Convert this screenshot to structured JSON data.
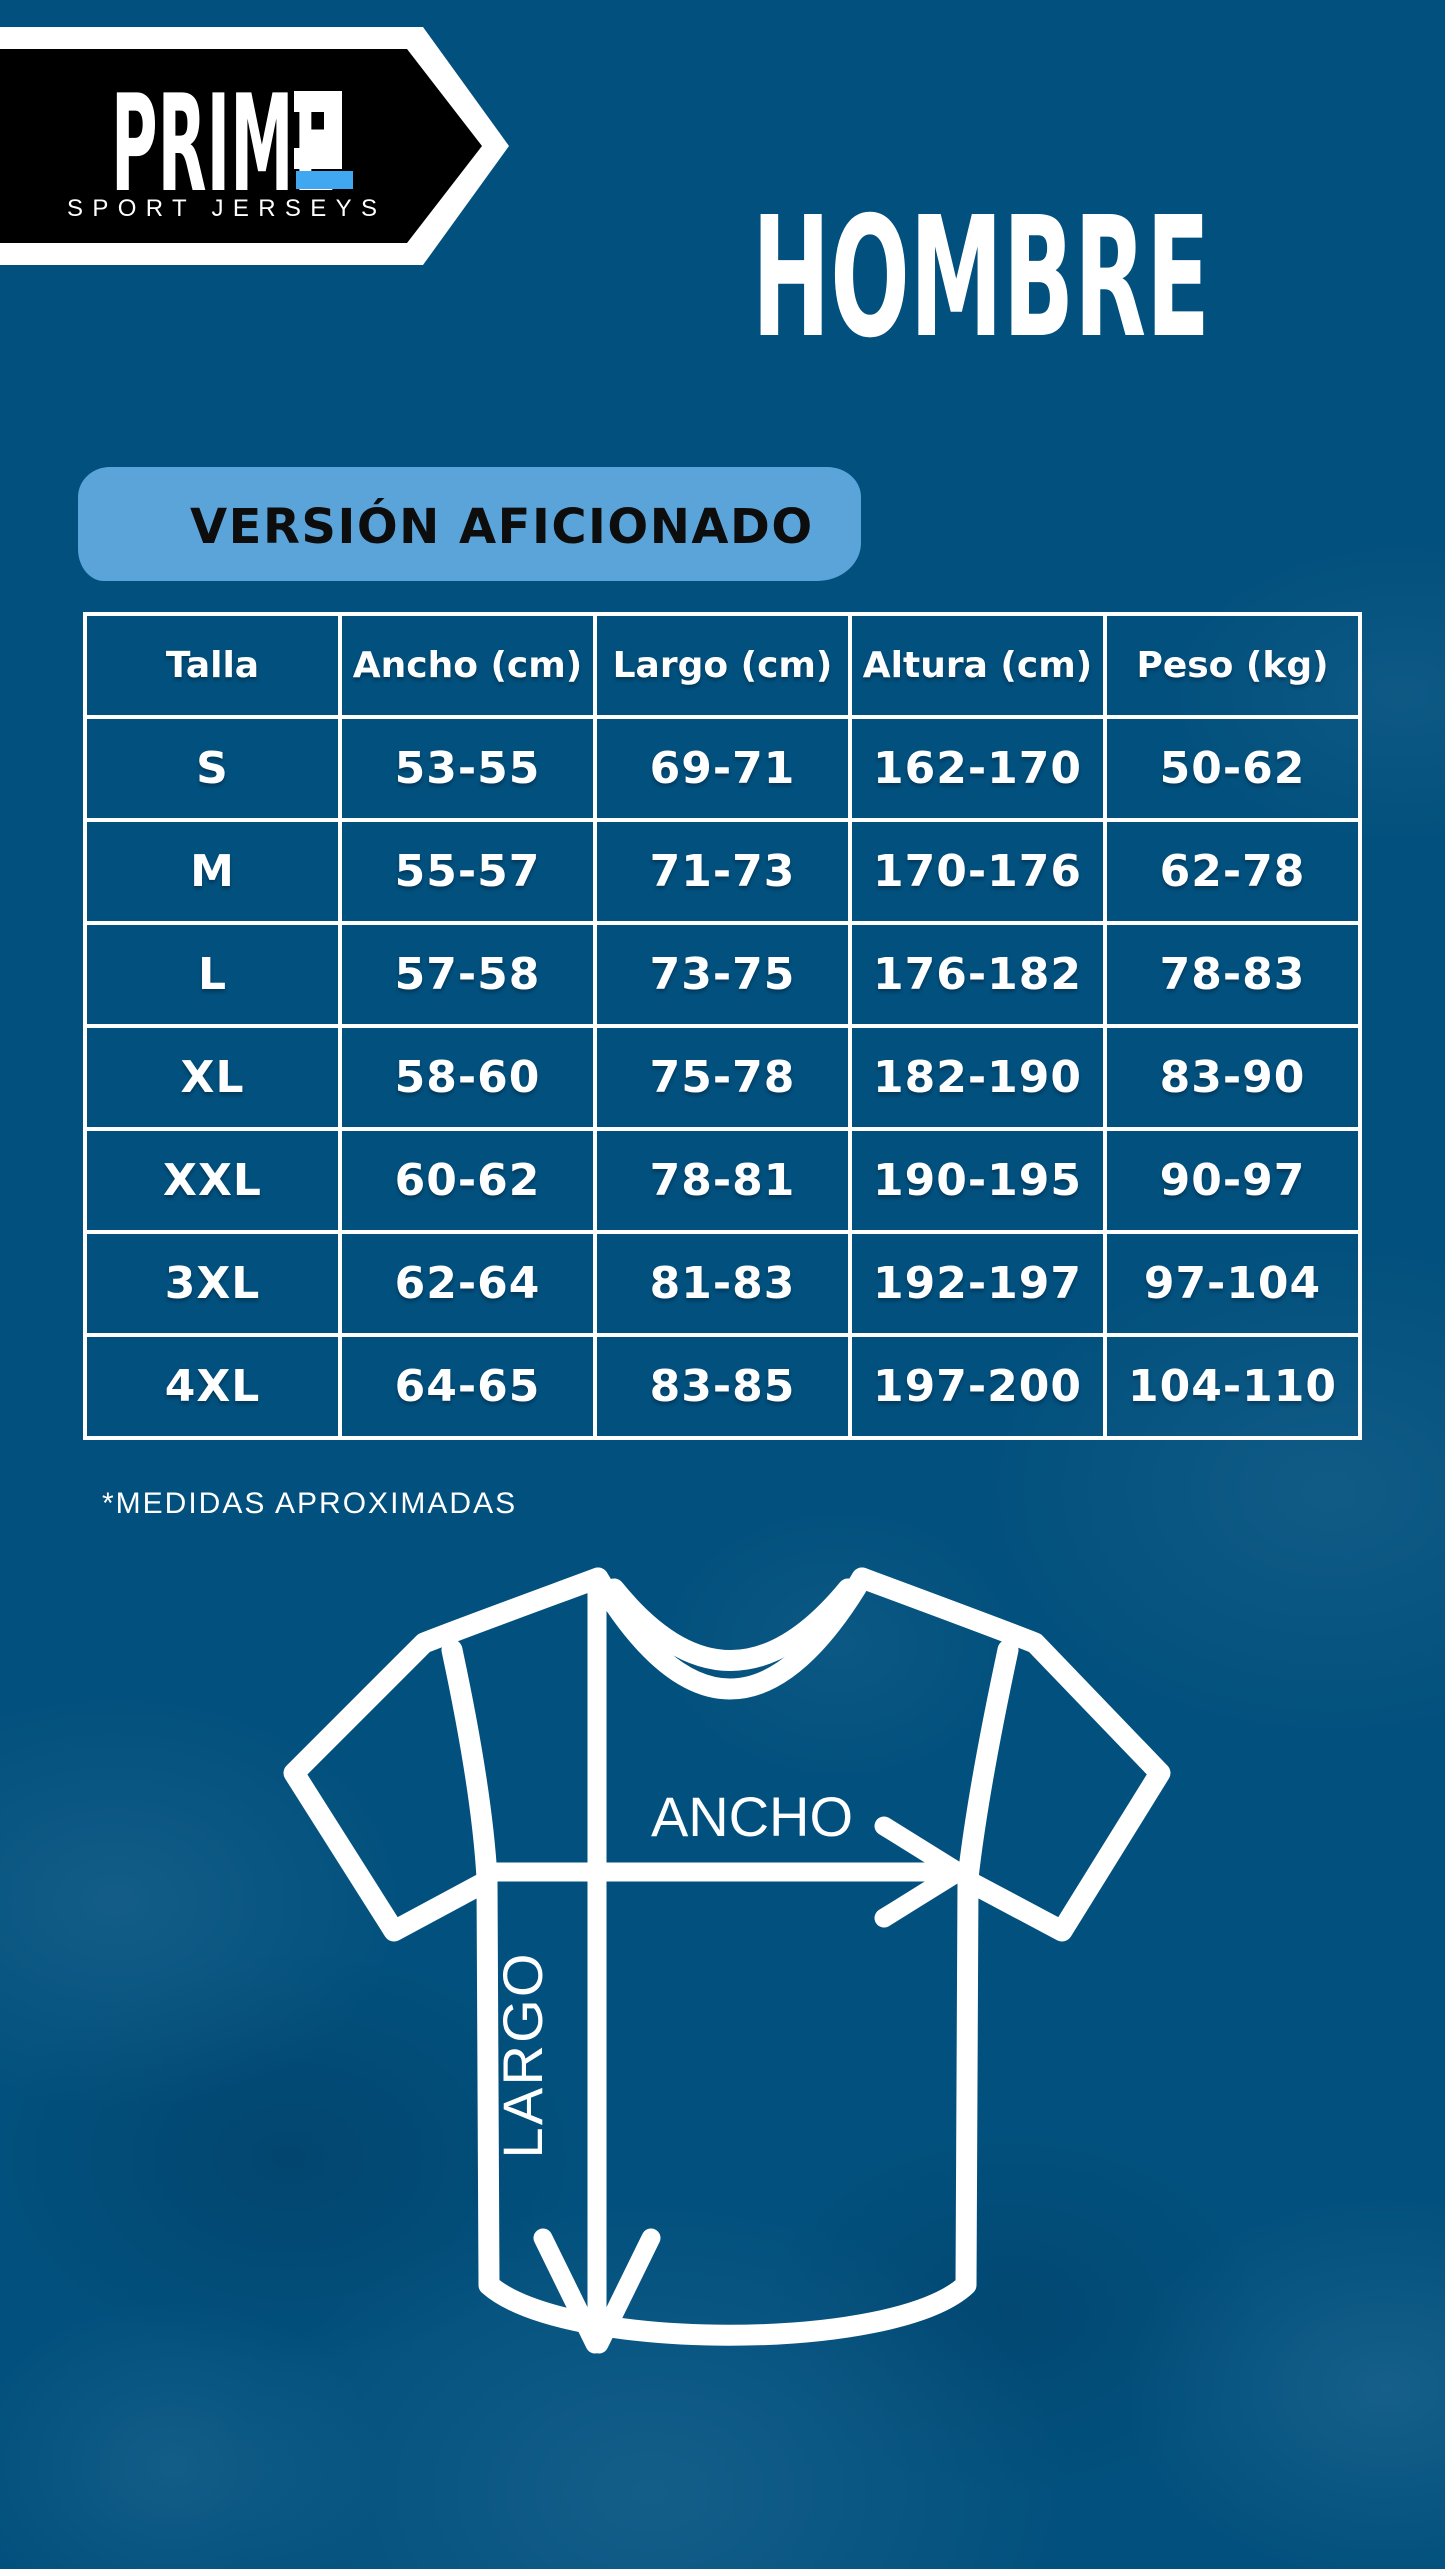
{
  "brand": {
    "name": "PRIME",
    "tagline": "SPORT JERSEYS"
  },
  "title": "HOMBRE",
  "badge_label": "VERSIÓN AFICIONADO",
  "size_table": {
    "headers": [
      "Talla",
      "Ancho (cm)",
      "Largo (cm)",
      "Altura (cm)",
      "Peso (kg)"
    ],
    "rows": [
      [
        "S",
        "53-55",
        "69-71",
        "162-170",
        "50-62"
      ],
      [
        "M",
        "55-57",
        "71-73",
        "170-176",
        "62-78"
      ],
      [
        "L",
        "57-58",
        "73-75",
        "176-182",
        "78-83"
      ],
      [
        "XL",
        "58-60",
        "75-78",
        "182-190",
        "83-90"
      ],
      [
        "XXL",
        "60-62",
        "78-81",
        "190-195",
        "90-97"
      ],
      [
        "3XL",
        "62-64",
        "81-83",
        "192-197",
        "97-104"
      ],
      [
        "4XL",
        "64-65",
        "83-85",
        "197-200",
        "104-110"
      ]
    ]
  },
  "footnote": "*MEDIDAS APROXIMADAS",
  "diagram": {
    "width_label": "ANCHO",
    "length_label": "LARGO"
  },
  "colors": {
    "background": "#02507D",
    "badge": "#5BA4DA",
    "accent_blue": "#3FA8F0",
    "logo_black": "#000000",
    "text_white": "#FFFFFF",
    "badge_text": "#0D0D0D"
  }
}
